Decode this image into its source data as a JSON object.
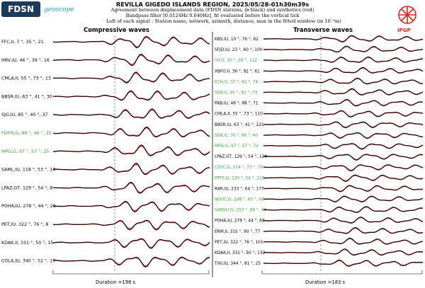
{
  "header": {
    "title": "REVILLA GIGEDO ISLANDS REGION, 2025/05/28-01h30m39s",
    "line1": "Agreement between displacement data (FDSN stations, in black) and synthetics (red)",
    "line2": "Bandpass filter [0.0124Hz 0.040Hz], fit evaluated before the vertical tick",
    "line3": "Left of each signal : Station name, network, azimuth, distance, max in the fitted window (in 10⁻⁸m)"
  },
  "logos": {
    "fdsn": "FDSN",
    "geoscope": "geoscope",
    "ipgp": "IPGP"
  },
  "colors": {
    "data": "#000000",
    "synthetic": "#d62020",
    "highlight_label": "#3aa63a",
    "normal_label": "#000000"
  },
  "panels": {
    "left": {
      "title": "Compressive waves",
      "duration": "Duration =198 s",
      "stations": [
        {
          "label": "FFC,II, 7 °, 35 °, 21",
          "highlight": false
        },
        {
          "label": "HRV,IU, 46 °, 39 °, 16",
          "highlight": false
        },
        {
          "label": "CMLA,II, 55 °, 73 °, 13",
          "highlight": false
        },
        {
          "label": "BBSR,IU, 63 °, 41 °, 30",
          "highlight": false
        },
        {
          "label": "SJG,IU, 85 °, 40 °, 37",
          "highlight": false
        },
        {
          "label": "FDFM,G, 88 °, 46 °, 35",
          "highlight": true
        },
        {
          "label": "MPG,G, 97 °, 57 °, 25",
          "highlight": true
        },
        {
          "label": "SAML,IU, 118 °, 53 °, 14",
          "highlight": false
        },
        {
          "label": "LPAZ,GT, 129 °, 54 °, 8",
          "highlight": false
        },
        {
          "label": "POHA,IU, 278 °, 44 °, 28",
          "highlight": false
        },
        {
          "label": "PET,IU, 322 °, 76 °, 8",
          "highlight": false
        },
        {
          "label": "KDAK,II, 331 °, 50 °, 15",
          "highlight": false
        },
        {
          "label": "COLA,IU, 340 °, 52 °, 17",
          "highlight": false
        }
      ]
    },
    "right": {
      "title": "Transverse waves",
      "duration": "Duration =183 s",
      "stations": [
        {
          "label": "KBS,IU, 10 °, 76 °, 62",
          "highlight": false
        },
        {
          "label": "SFJD,IU, 23 °, 60 °, 100",
          "highlight": false
        },
        {
          "label": "IVI,G, 30 °, 59 °, 112",
          "highlight": true
        },
        {
          "label": "XBFO,II, 36 °, 92 °, 61",
          "highlight": false
        },
        {
          "label": "ECH,G, 37 °, 92 °, 74",
          "highlight": true
        },
        {
          "label": "SSB,G, 40 °, 92 °, 73",
          "highlight": true
        },
        {
          "label": "PAB,IU, 48 °, 88 °, 71",
          "highlight": false
        },
        {
          "label": "CMLA,II, 55 °, 73 °, 110",
          "highlight": false
        },
        {
          "label": "BBSR,IU, 63 °, 41 °, 221",
          "highlight": false
        },
        {
          "label": "SOK,G, 76 °, 86 °, 40",
          "highlight": true
        },
        {
          "label": "MPG,G, 97 °, 57 °, 72",
          "highlight": true
        },
        {
          "label": "LPAZ,GT, 129 °, 54 °, 124",
          "highlight": false
        },
        {
          "label": "COYC,G, 154 °, 73 °, 70",
          "highlight": true
        },
        {
          "label": "PPTF,G, 230 °, 54 °, 219",
          "highlight": true
        },
        {
          "label": "RAR,IU, 233 °, 64 °, 177",
          "highlight": false
        },
        {
          "label": "NOUC,G, 248 °, 83 °, 46",
          "highlight": true
        },
        {
          "label": "SANVU,G, 253 °, 89 °, 44",
          "highlight": true
        },
        {
          "label": "POHA,IU, 278 °, 44 °, 68",
          "highlight": false
        },
        {
          "label": "ERM,II, 315 °, 90 °, 77",
          "highlight": false
        },
        {
          "label": "PET,IU, 322 °, 76 °, 101",
          "highlight": false
        },
        {
          "label": "KDAK,II, 331 °, 50 °, 132",
          "highlight": false
        },
        {
          "label": "TIXI,IU, 344 °, 81 °, 25",
          "highlight": false
        }
      ]
    }
  }
}
